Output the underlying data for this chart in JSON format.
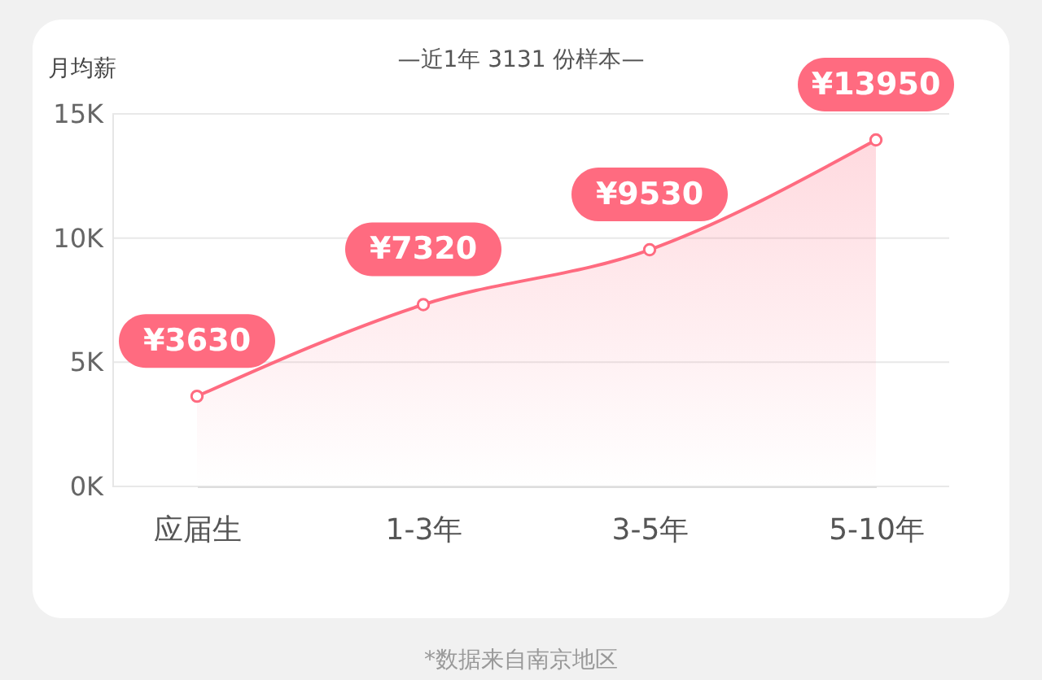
{
  "chart_data": {
    "type": "area",
    "title": "—近1年 3131 份样本—",
    "ylabel": "月均薪",
    "categories": [
      "应届生",
      "1-3年",
      "3-5年",
      "5-10年"
    ],
    "series": [
      {
        "color": "#ff6b80",
        "values": [
          3630,
          7320,
          9530,
          13950
        ],
        "value_labels": [
          "¥3630",
          "¥7320",
          "¥9530",
          "¥13950"
        ]
      }
    ],
    "ylim": [
      0,
      15000
    ],
    "yticks": [
      {
        "value": 0,
        "label": "0K"
      },
      {
        "value": 5000,
        "label": "5K"
      },
      {
        "value": 10000,
        "label": "10K"
      },
      {
        "value": 15000,
        "label": "15K"
      }
    ],
    "grid": "y",
    "marker": "circle",
    "line_style": "solid",
    "annotations": [
      "*数据来自南京地区"
    ]
  }
}
